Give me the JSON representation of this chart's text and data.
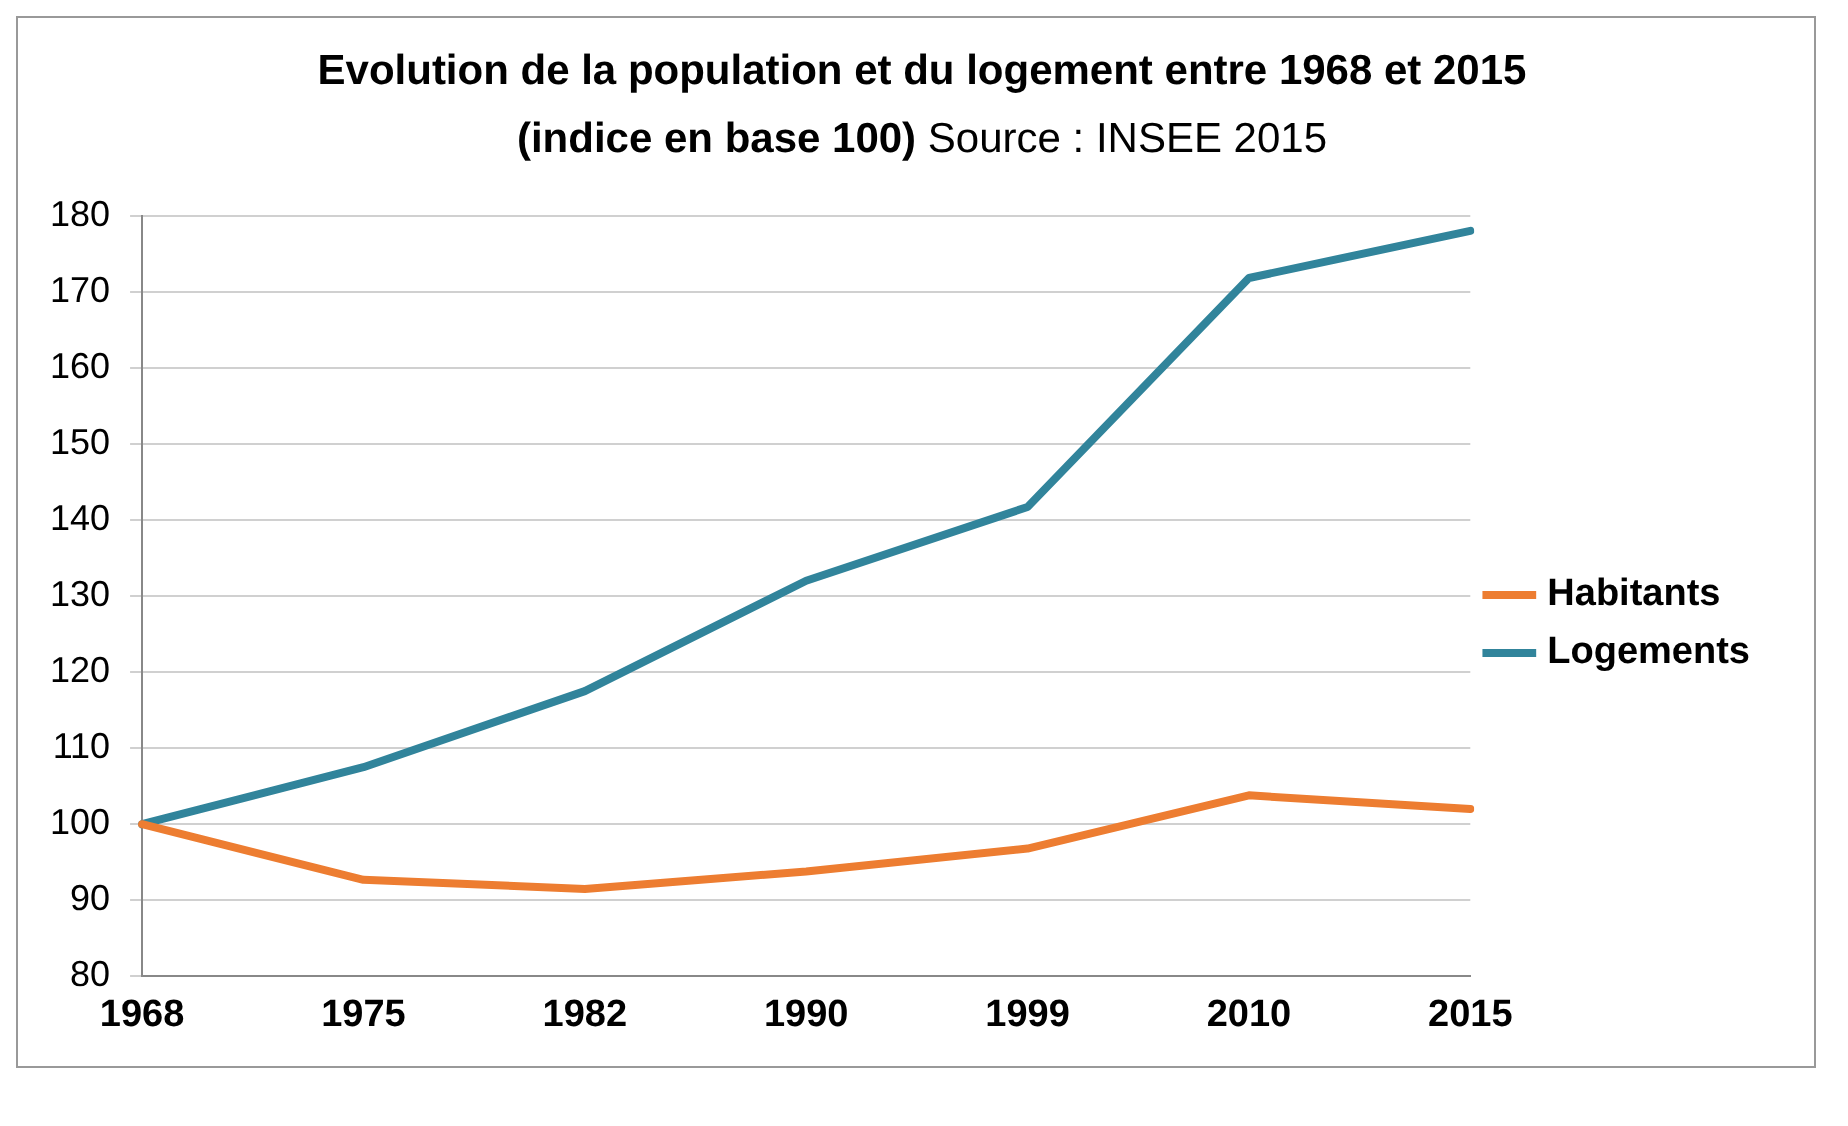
{
  "chart_data": {
    "type": "line",
    "title": "Evolution de la population et du logement entre 1968 et 2015 (indice en base 100)",
    "annotations": [
      "Source : INSEE 2015"
    ],
    "categories": [
      "1968",
      "1975",
      "1982",
      "1990",
      "1999",
      "2010",
      "2015"
    ],
    "series": [
      {
        "name": "Habitants",
        "color": "#ed7d31",
        "values": [
          100,
          92.7,
          91.5,
          93.8,
          96.8,
          103.8,
          102
        ]
      },
      {
        "name": "Logements",
        "color": "#31849b",
        "values": [
          100,
          107.5,
          117.5,
          132,
          141.7,
          171.8,
          178
        ]
      }
    ],
    "ylim": [
      80,
      180
    ],
    "yticks": [
      80,
      90,
      100,
      110,
      120,
      130,
      140,
      150,
      160,
      170,
      180
    ],
    "grid": "y",
    "legend": "right",
    "marker": "none",
    "line_style": "solid"
  }
}
